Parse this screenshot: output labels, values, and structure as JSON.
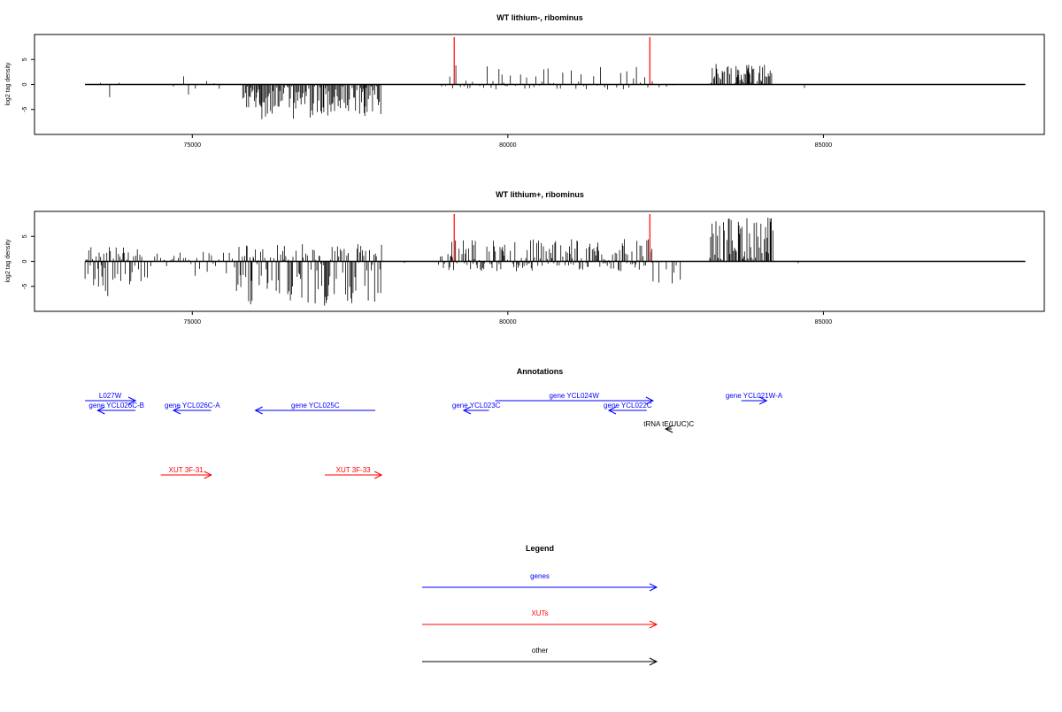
{
  "chart_data": [
    {
      "type": "bar",
      "title": "WT lithium-, ribominus",
      "xlabel": "",
      "ylabel": "log2 tag density",
      "xlim": [
        72500,
        88500
      ],
      "ylim": [
        -10,
        10
      ],
      "xticks": [
        75000,
        80000,
        85000
      ],
      "xtick_labels": [
        "75000",
        "80000",
        "85000"
      ],
      "yticks": [
        -5,
        0,
        5
      ],
      "ytick_labels": [
        "-5",
        "0",
        "5"
      ],
      "markers": [
        79150,
        82250
      ],
      "marker_color": "#ff0000",
      "baseline_range": [
        73300,
        88200
      ],
      "segments": [
        {
          "range": [
            73400,
            74000
          ],
          "density": "sparse",
          "min": -3,
          "max": 0.5
        },
        {
          "range": [
            74700,
            75500
          ],
          "density": "sparse",
          "min": -3,
          "max": 2
        },
        {
          "range": [
            75800,
            78000
          ],
          "density": "dense",
          "min": -7,
          "max": 0
        },
        {
          "range": [
            78900,
            82300
          ],
          "density": "medium",
          "min": -1,
          "max": 4
        },
        {
          "range": [
            82300,
            82700
          ],
          "density": "sparse",
          "min": -1,
          "max": 0
        },
        {
          "range": [
            83200,
            84200
          ],
          "density": "dense",
          "min": 0,
          "max": 4.5
        },
        {
          "range": [
            84700,
            84750
          ],
          "density": "sparse",
          "min": -3,
          "max": 0
        }
      ]
    },
    {
      "type": "bar",
      "title": "WT lithium+, ribominus",
      "xlabel": "",
      "ylabel": "log2 tag density",
      "xlim": [
        72500,
        88500
      ],
      "ylim": [
        -10,
        10
      ],
      "xticks": [
        75000,
        80000,
        85000
      ],
      "xtick_labels": [
        "75000",
        "80000",
        "85000"
      ],
      "yticks": [
        -5,
        0,
        5
      ],
      "ytick_labels": [
        "-5",
        "0",
        "5"
      ],
      "markers": [
        79150,
        82250
      ],
      "marker_color": "#ff0000",
      "baseline_range": [
        73300,
        88200
      ],
      "segments": [
        {
          "range": [
            73300,
            74200
          ],
          "density": "dense",
          "min": -7,
          "max": 3
        },
        {
          "range": [
            74200,
            75700
          ],
          "density": "medium",
          "min": -3.5,
          "max": 2
        },
        {
          "range": [
            75700,
            78000
          ],
          "density": "dense",
          "min": -9,
          "max": 3.5
        },
        {
          "range": [
            78000,
            78500
          ],
          "density": "sparse",
          "min": -1,
          "max": 0.5
        },
        {
          "range": [
            78900,
            82300
          ],
          "density": "dense",
          "min": -2,
          "max": 4.5
        },
        {
          "range": [
            82300,
            82800
          ],
          "density": "medium",
          "min": -4.5,
          "max": 0
        },
        {
          "range": [
            83200,
            84200
          ],
          "density": "dense",
          "min": 0,
          "max": 9
        },
        {
          "range": [
            84600,
            84750
          ],
          "density": "sparse",
          "min": -2,
          "max": 2
        }
      ]
    }
  ],
  "annotations": {
    "title": "Annotations",
    "items": [
      {
        "label": "L027W",
        "start": 73300,
        "end": 74100,
        "direction": "right",
        "color": "#0000ff",
        "row": 1
      },
      {
        "label": "gene YCL026C-B",
        "start": 74100,
        "end": 73500,
        "direction": "left",
        "color": "#0000ff",
        "row": 2
      },
      {
        "label": "gene YCL026C-A",
        "start": 75300,
        "end": 74700,
        "direction": "left",
        "color": "#0000ff",
        "row": 2
      },
      {
        "label": "gene YCL025C",
        "start": 77900,
        "end": 76000,
        "direction": "left",
        "color": "#0000ff",
        "row": 2
      },
      {
        "label": "gene YCL024W",
        "start": 79800,
        "end": 82300,
        "direction": "right",
        "color": "#0000ff",
        "row": 1
      },
      {
        "label": "gene YCL023C",
        "start": 79700,
        "end": 79300,
        "direction": "left",
        "color": "#0000ff",
        "row": 2
      },
      {
        "label": "gene YCL022C",
        "start": 82200,
        "end": 81600,
        "direction": "left",
        "color": "#0000ff",
        "row": 2
      },
      {
        "label": "gene YCL021W-A",
        "start": 83700,
        "end": 84100,
        "direction": "right",
        "color": "#0000ff",
        "row": 1
      },
      {
        "label": "tRNA tE(UUC)C",
        "start": 82600,
        "end": 82500,
        "direction": "left",
        "color": "#000000",
        "row": 3
      },
      {
        "label": "XUT 3F-31",
        "start": 74500,
        "end": 75300,
        "direction": "right",
        "color": "#ff0000",
        "row": 5
      },
      {
        "label": "XUT 3F-33",
        "start": 77100,
        "end": 78000,
        "direction": "right",
        "color": "#ff0000",
        "row": 5
      }
    ]
  },
  "legend": {
    "title": "Legend",
    "items": [
      {
        "label": "genes",
        "color": "#0000ff"
      },
      {
        "label": "XUTs",
        "color": "#ff0000"
      },
      {
        "label": "other",
        "color": "#000000"
      }
    ]
  }
}
